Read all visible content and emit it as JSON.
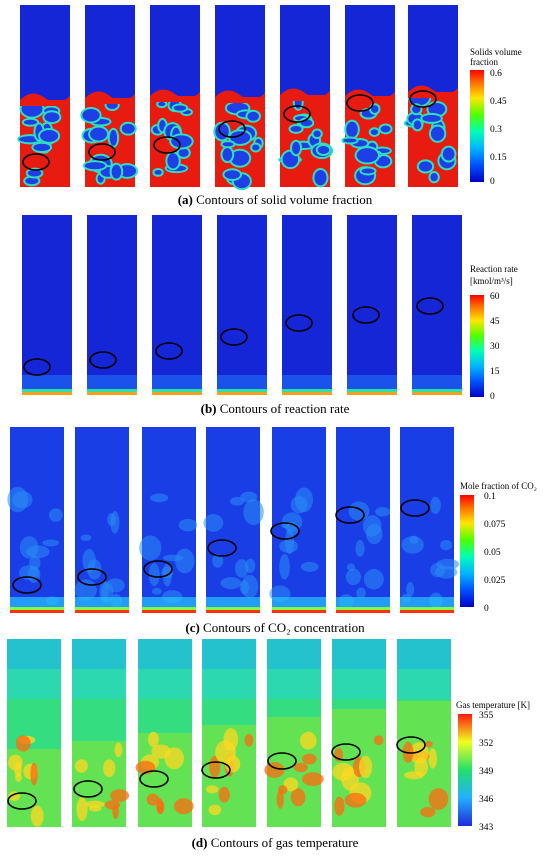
{
  "figure": {
    "panels": [
      {
        "id": "a",
        "caption_label": "(a)",
        "caption_text": " Contours of solid volume fraction",
        "colorbar_title_lines": [
          "Solids volume",
          "fraction"
        ],
        "colorbar_ticks": [
          "0.6",
          "0.45",
          "0.3",
          "0.15",
          "0"
        ]
      },
      {
        "id": "b",
        "caption_label": "(b)",
        "caption_text": " Contours of reaction rate",
        "colorbar_title_lines": [
          "Reaction rate",
          "[kmol/m³/s]"
        ],
        "colorbar_ticks": [
          "60",
          "45",
          "30",
          "15",
          "0"
        ]
      },
      {
        "id": "c",
        "caption_label": "(c)",
        "caption_text": " Contours of CO₂ concentration",
        "colorbar_title_lines": [
          "Mole fraction of CO₂"
        ],
        "colorbar_ticks": [
          "0.1",
          "0.075",
          "0.05",
          "0.025",
          "0"
        ]
      },
      {
        "id": "d",
        "caption_label": "(d)",
        "caption_text": " Contours of gas temperature",
        "colorbar_title_lines": [
          "Gas temperature [K]"
        ],
        "colorbar_ticks": [
          "355",
          "352",
          "349",
          "346",
          "343"
        ]
      }
    ]
  }
}
